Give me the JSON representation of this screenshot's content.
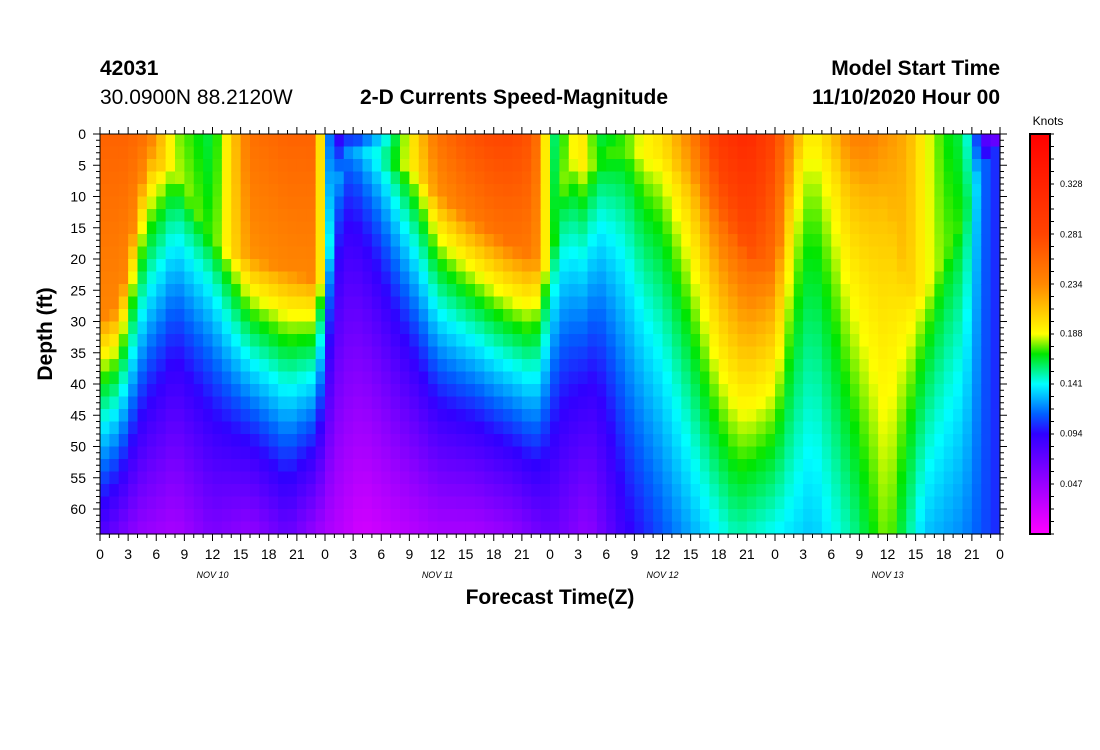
{
  "header": {
    "station_id": "42031",
    "location": "30.0900N 88.2120W",
    "title": "2-D Currents Speed-Magnitude",
    "start_label": "Model Start Time",
    "start_value": "11/10/2020 Hour 00"
  },
  "chart_data": {
    "type": "heatmap",
    "title": "2-D Currents Speed-Magnitude",
    "xlabel": "Forecast Time(Z)",
    "ylabel": "Depth (ft)",
    "x_range_hours": [
      0,
      96
    ],
    "y_range_ft": [
      0,
      64
    ],
    "x_ticks": [
      {
        "hour": 0,
        "label": "0"
      },
      {
        "hour": 3,
        "label": "3"
      },
      {
        "hour": 6,
        "label": "6"
      },
      {
        "hour": 9,
        "label": "9"
      },
      {
        "hour": 12,
        "label": "12"
      },
      {
        "hour": 15,
        "label": "15"
      },
      {
        "hour": 18,
        "label": "18"
      },
      {
        "hour": 21,
        "label": "21"
      },
      {
        "hour": 24,
        "label": "0"
      },
      {
        "hour": 27,
        "label": "3"
      },
      {
        "hour": 30,
        "label": "6"
      },
      {
        "hour": 33,
        "label": "9"
      },
      {
        "hour": 36,
        "label": "12"
      },
      {
        "hour": 39,
        "label": "15"
      },
      {
        "hour": 42,
        "label": "18"
      },
      {
        "hour": 45,
        "label": "21"
      },
      {
        "hour": 48,
        "label": "0"
      },
      {
        "hour": 51,
        "label": "3"
      },
      {
        "hour": 54,
        "label": "6"
      },
      {
        "hour": 57,
        "label": "9"
      },
      {
        "hour": 60,
        "label": "12"
      },
      {
        "hour": 63,
        "label": "15"
      },
      {
        "hour": 66,
        "label": "18"
      },
      {
        "hour": 69,
        "label": "21"
      },
      {
        "hour": 72,
        "label": "0"
      },
      {
        "hour": 75,
        "label": "3"
      },
      {
        "hour": 78,
        "label": "6"
      },
      {
        "hour": 81,
        "label": "9"
      },
      {
        "hour": 84,
        "label": "12"
      },
      {
        "hour": 87,
        "label": "15"
      },
      {
        "hour": 90,
        "label": "18"
      },
      {
        "hour": 93,
        "label": "21"
      },
      {
        "hour": 96,
        "label": "0"
      }
    ],
    "date_labels": [
      {
        "hour": 12,
        "label": "NOV 10"
      },
      {
        "hour": 36,
        "label": "NOV 11"
      },
      {
        "hour": 60,
        "label": "NOV 12"
      },
      {
        "hour": 84,
        "label": "NOV 13"
      }
    ],
    "y_ticks": [
      0,
      5,
      10,
      15,
      20,
      25,
      30,
      35,
      40,
      45,
      50,
      55,
      60
    ],
    "colorbar": {
      "unit": "Knots",
      "range": [
        0.0,
        0.375
      ],
      "ticks": [
        "0.047",
        "0.094",
        "0.141",
        "0.188",
        "0.234",
        "0.281",
        "0.328"
      ]
    },
    "depths_ft": [
      0,
      8,
      16,
      24,
      32,
      40,
      48,
      56,
      64
    ],
    "surface_profile": {
      "hours": [
        0,
        3,
        5,
        8,
        12,
        16,
        20,
        23,
        24,
        25,
        27,
        30,
        33,
        36,
        39,
        42,
        44,
        46,
        47,
        48,
        50,
        51,
        52,
        53,
        56,
        58,
        60,
        63,
        66,
        69,
        72,
        75,
        76,
        78,
        80,
        82,
        84,
        86,
        88,
        90,
        92,
        93,
        94,
        95,
        96
      ],
      "surface_speed_knots": [
        0.26,
        0.26,
        0.25,
        0.18,
        0.16,
        0.25,
        0.26,
        0.26,
        0.14,
        0.09,
        0.09,
        0.13,
        0.19,
        0.25,
        0.27,
        0.28,
        0.28,
        0.27,
        0.24,
        0.15,
        0.18,
        0.2,
        0.19,
        0.16,
        0.17,
        0.19,
        0.2,
        0.24,
        0.3,
        0.32,
        0.28,
        0.2,
        0.19,
        0.21,
        0.24,
        0.24,
        0.23,
        0.22,
        0.19,
        0.17,
        0.16,
        0.13,
        0.08,
        0.06,
        0.05
      ]
    },
    "max_depth_of_fast_layer_ft": {
      "hours": [
        0,
        2,
        5,
        8,
        12,
        16,
        20,
        24,
        26,
        30,
        34,
        36,
        40,
        44,
        46,
        48,
        50,
        52,
        54,
        56,
        58,
        60,
        64,
        68,
        70,
        72,
        74,
        76,
        78,
        80,
        82,
        84,
        86,
        88,
        90,
        92,
        94,
        96
      ],
      "depth_ft": [
        30,
        28,
        4,
        6,
        18,
        20,
        22,
        24,
        2,
        4,
        6,
        10,
        14,
        18,
        20,
        22,
        4,
        6,
        4,
        2,
        4,
        4,
        8,
        16,
        20,
        22,
        4,
        2,
        4,
        6,
        8,
        10,
        24,
        26,
        20,
        14,
        6,
        2
      ]
    },
    "bottom_speed_knots": {
      "hours": [
        0,
        4,
        8,
        12,
        16,
        20,
        24,
        28,
        32,
        36,
        40,
        44,
        48,
        52,
        56,
        60,
        64,
        68,
        72,
        76,
        80,
        84,
        88,
        92,
        96
      ],
      "speed": [
        0.08,
        0.05,
        0.04,
        0.06,
        0.05,
        0.07,
        0.04,
        0.02,
        0.03,
        0.04,
        0.04,
        0.05,
        0.07,
        0.05,
        0.09,
        0.11,
        0.13,
        0.15,
        0.14,
        0.13,
        0.15,
        0.18,
        0.13,
        0.12,
        0.1
      ]
    }
  }
}
